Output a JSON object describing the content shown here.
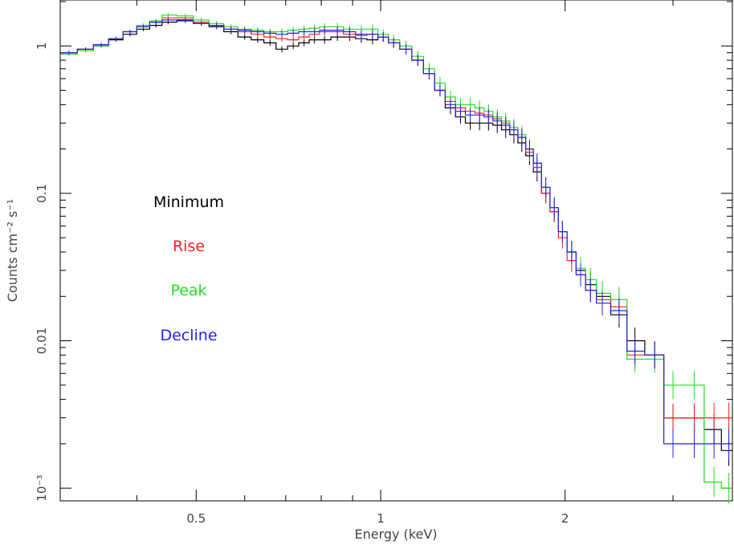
{
  "chart_data": {
    "type": "line",
    "xlabel": "Energy (keV)",
    "ylabel": "Counts cm⁻² s⁻¹",
    "x_scale": "log",
    "y_scale": "log",
    "xlim": [
      0.3,
      3.75
    ],
    "ylim": [
      0.00082,
      2.05
    ],
    "x_ticks": [
      {
        "value": 0.5,
        "label": "0.5"
      },
      {
        "value": 1,
        "label": "1"
      },
      {
        "value": 2,
        "label": "2"
      }
    ],
    "y_ticks": [
      {
        "value": 1,
        "label": "1"
      },
      {
        "value": 0.1,
        "label": "0.1"
      },
      {
        "value": 0.01,
        "label": "0.01"
      },
      {
        "value": 0.001,
        "label": "10⁻³"
      }
    ],
    "grid": false,
    "legend_position": "left-middle",
    "x": [
      0.31,
      0.33,
      0.35,
      0.37,
      0.39,
      0.41,
      0.43,
      0.45,
      0.48,
      0.51,
      0.54,
      0.57,
      0.6,
      0.63,
      0.66,
      0.69,
      0.72,
      0.75,
      0.78,
      0.81,
      0.85,
      0.89,
      0.93,
      0.97,
      1.01,
      1.05,
      1.1,
      1.15,
      1.2,
      1.25,
      1.3,
      1.35,
      1.4,
      1.45,
      1.5,
      1.55,
      1.6,
      1.65,
      1.7,
      1.75,
      1.8,
      1.86,
      1.92,
      1.98,
      2.05,
      2.12,
      2.2,
      2.3,
      2.45,
      2.6,
      2.8,
      3.0,
      3.25,
      3.5,
      3.7
    ],
    "series": [
      {
        "name": "Minimum",
        "color": "#000000",
        "values": [
          0.9,
          0.95,
          1.0,
          1.1,
          1.2,
          1.3,
          1.38,
          1.45,
          1.5,
          1.42,
          1.35,
          1.25,
          1.15,
          1.1,
          1.05,
          0.95,
          1.0,
          1.05,
          1.1,
          1.1,
          1.15,
          1.15,
          1.12,
          1.1,
          1.15,
          1.05,
          0.95,
          0.8,
          0.65,
          0.5,
          0.38,
          0.33,
          0.3,
          0.3,
          0.3,
          0.29,
          0.27,
          0.25,
          0.22,
          0.18,
          0.14,
          0.1,
          0.075,
          0.055,
          0.04,
          0.03,
          0.024,
          0.02,
          0.015,
          0.01,
          0.008,
          0.003,
          0.003,
          0.0025,
          0.0018
        ]
      },
      {
        "name": "Rise",
        "color": "#ff2020",
        "values": [
          0.9,
          0.95,
          1.02,
          1.12,
          1.25,
          1.35,
          1.45,
          1.55,
          1.55,
          1.45,
          1.38,
          1.3,
          1.25,
          1.2,
          1.15,
          1.12,
          1.1,
          1.15,
          1.2,
          1.25,
          1.25,
          1.2,
          1.18,
          1.2,
          1.15,
          1.05,
          0.95,
          0.8,
          0.65,
          0.5,
          0.42,
          0.38,
          0.36,
          0.35,
          0.34,
          0.32,
          0.3,
          0.27,
          0.24,
          0.19,
          0.15,
          0.1,
          0.075,
          0.05,
          0.035,
          0.028,
          0.022,
          0.019,
          0.017,
          0.008,
          0.008,
          0.003,
          0.003,
          0.003,
          0.003
        ]
      },
      {
        "name": "Peak",
        "color": "#22dd22",
        "values": [
          0.88,
          0.93,
          1.0,
          1.12,
          1.25,
          1.38,
          1.48,
          1.62,
          1.6,
          1.5,
          1.42,
          1.35,
          1.3,
          1.28,
          1.25,
          1.25,
          1.28,
          1.3,
          1.32,
          1.35,
          1.35,
          1.3,
          1.3,
          1.3,
          1.2,
          1.1,
          1.0,
          0.85,
          0.7,
          0.56,
          0.45,
          0.4,
          0.4,
          0.38,
          0.36,
          0.33,
          0.31,
          0.28,
          0.25,
          0.2,
          0.16,
          0.11,
          0.08,
          0.055,
          0.04,
          0.031,
          0.026,
          0.021,
          0.019,
          0.0075,
          0.0075,
          0.005,
          0.005,
          0.0011,
          0.001
        ]
      },
      {
        "name": "Decline",
        "color": "#2222ee",
        "values": [
          0.9,
          0.95,
          1.02,
          1.12,
          1.25,
          1.35,
          1.45,
          1.5,
          1.48,
          1.42,
          1.38,
          1.3,
          1.28,
          1.25,
          1.22,
          1.2,
          1.22,
          1.25,
          1.25,
          1.28,
          1.28,
          1.25,
          1.2,
          1.2,
          1.15,
          1.05,
          0.95,
          0.8,
          0.65,
          0.5,
          0.4,
          0.36,
          0.34,
          0.34,
          0.33,
          0.31,
          0.29,
          0.27,
          0.24,
          0.2,
          0.16,
          0.11,
          0.08,
          0.055,
          0.04,
          0.028,
          0.022,
          0.018,
          0.016,
          0.0085,
          0.008,
          0.002,
          0.002,
          0.002,
          0.002
        ]
      }
    ]
  }
}
